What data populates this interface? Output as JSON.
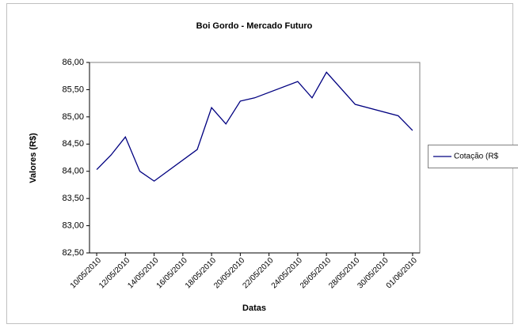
{
  "chart_data": {
    "type": "line",
    "title": "Boi Gordo - Mercado Futuro",
    "x_label": "Datas",
    "y_label": "Valores (R$)",
    "x": [
      "10/05/2010",
      "11/05/2010",
      "12/05/2010",
      "13/05/2010",
      "14/05/2010",
      "17/05/2010",
      "18/05/2010",
      "19/05/2010",
      "20/05/2010",
      "21/05/2010",
      "24/05/2010",
      "25/05/2010",
      "26/05/2010",
      "28/05/2010",
      "31/05/2010",
      "01/06/2010"
    ],
    "series": [
      {
        "name": "Cotação (R$",
        "color": "#000080",
        "values": [
          84.03,
          84.3,
          84.63,
          84.0,
          83.82,
          84.4,
          85.17,
          84.87,
          85.29,
          85.35,
          85.65,
          85.35,
          85.82,
          85.23,
          85.02,
          84.75
        ]
      }
    ],
    "xlim": [
      "10/05/2010",
      "01/06/2010"
    ],
    "xticks": [
      "10/05/2010",
      "12/05/2010",
      "14/05/2010",
      "16/05/2010",
      "18/05/2010",
      "20/05/2010",
      "22/05/2010",
      "24/05/2010",
      "26/05/2010",
      "28/05/2010",
      "30/05/2010",
      "01/06/2010"
    ],
    "ylim": [
      82.5,
      86
    ],
    "yticks": [
      {
        "value": 82.5,
        "label": "82,50"
      },
      {
        "value": 83,
        "label": "83,00"
      },
      {
        "value": 83.5,
        "label": "83,50"
      },
      {
        "value": 84,
        "label": "84,00"
      },
      {
        "value": 84.5,
        "label": "84,50"
      },
      {
        "value": 85,
        "label": "85,00"
      },
      {
        "value": 85.5,
        "label": "85,50"
      },
      {
        "value": 86,
        "label": "86,00"
      }
    ],
    "grid": false,
    "legend": "right"
  }
}
